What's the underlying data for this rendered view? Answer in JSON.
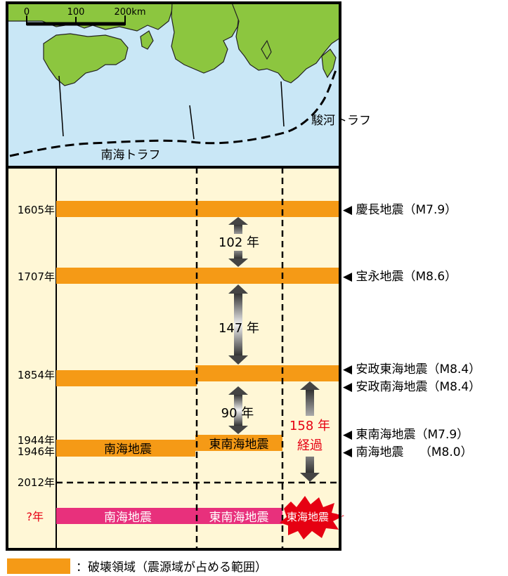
{
  "colors": {
    "sea": "#c9e7f6",
    "land": "#8cc63f",
    "timeline_bg": "#fff7d6",
    "rupture": "#f59a16",
    "future": "#e8307c",
    "tokai_star": "#e60012",
    "highlight_text": "#e60012"
  },
  "scale_bar": {
    "t0": "0",
    "t100": "100",
    "t200": "200km"
  },
  "map_labels": {
    "suruga": "駿河トラフ",
    "nankai": "南海トラフ"
  },
  "years": {
    "y1605": "1605年",
    "y1707": "1707年",
    "y1854": "1854年",
    "y1944": "1944年",
    "y1946": "1946年",
    "y2012": "2012年",
    "future": "?年"
  },
  "events": {
    "keicho": "◀ 慶長地震（M7.9）",
    "hoei": "◀ 宝永地震（M8.6）",
    "ansei_tokai": "◀ 安政東海地震（M8.4）",
    "ansei_nankai": "◀ 安政南海地震（M8.4）",
    "tonankai": "◀ 東南海地震（M7.9）",
    "nankai": "◀ 南海地震　 （M8.0）"
  },
  "intervals": {
    "i102": "102 年",
    "i147": "147 年",
    "i90": "90 年",
    "i158_line1": "158 年",
    "i158_line2": "経過"
  },
  "bar_labels": {
    "nankai_1946": "南海地震",
    "tonankai_1944": "東南海地震",
    "future_nankai": "南海地震",
    "future_tonankai": "東南海地震",
    "future_tokai": "東海地震",
    "future_q": "?"
  },
  "legend": {
    "text": "：破壊領域（震源域が占める範囲）"
  }
}
